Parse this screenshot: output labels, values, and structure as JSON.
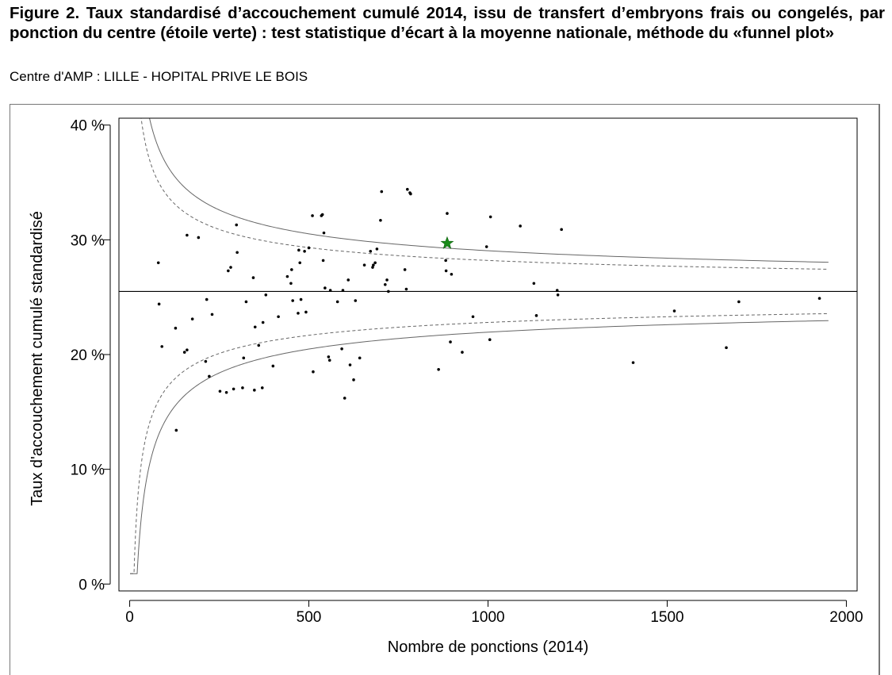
{
  "figure": {
    "title": "Figure 2. Taux standardisé d’accouchement cumulé 2014, issu de transfert d’embryons frais ou congelés, par ponction du centre (étoile verte) : test statistique d’écart à la moyenne nationale, méthode du «funnel plot»",
    "subtitle": "Centre d'AMP : LILLE - HOPITAL PRIVE LE BOIS"
  },
  "chart_data": {
    "type": "scatter",
    "xlabel": "Nombre de ponctions (2014)",
    "ylabel": "Taux d'accouchement cumulé standardisé",
    "xlim": [
      -30,
      2030
    ],
    "ylim": [
      -0.6,
      40.6
    ],
    "xticks": [
      0,
      500,
      1000,
      1500,
      2000
    ],
    "xtick_labels": [
      "0",
      "500",
      "1000",
      "1500",
      "2000"
    ],
    "yticks": [
      0,
      10,
      20,
      30,
      40
    ],
    "ytick_labels": [
      "0 %",
      "10 %",
      "20 %",
      "30 %",
      "40 %"
    ],
    "grid": false,
    "legend": "none",
    "national_mean": 25.5,
    "funnel_limits": {
      "x_range": [
        1,
        1950
      ],
      "inner_dashed_z": 1.96,
      "outer_solid_z": 2.576
    },
    "center": {
      "x": 886,
      "y": 29.7,
      "marker": "star",
      "color": "#1a8a1a"
    },
    "points": [
      [
        80,
        28.0
      ],
      [
        82,
        24.4
      ],
      [
        90,
        20.7
      ],
      [
        128,
        22.3
      ],
      [
        130,
        13.4
      ],
      [
        153,
        20.2
      ],
      [
        160,
        30.4
      ],
      [
        160,
        20.4
      ],
      [
        175,
        23.1
      ],
      [
        192,
        30.2
      ],
      [
        212,
        19.4
      ],
      [
        215,
        24.8
      ],
      [
        222,
        18.1
      ],
      [
        230,
        23.5
      ],
      [
        252,
        16.8
      ],
      [
        270,
        16.7
      ],
      [
        275,
        27.3
      ],
      [
        282,
        27.6
      ],
      [
        290,
        17.0
      ],
      [
        298,
        31.3
      ],
      [
        300,
        28.9
      ],
      [
        315,
        17.1
      ],
      [
        318,
        19.7
      ],
      [
        325,
        24.6
      ],
      [
        345,
        26.7
      ],
      [
        348,
        16.9
      ],
      [
        350,
        22.4
      ],
      [
        360,
        20.8
      ],
      [
        370,
        17.1
      ],
      [
        372,
        22.8
      ],
      [
        380,
        25.2
      ],
      [
        400,
        19.0
      ],
      [
        415,
        23.3
      ],
      [
        440,
        26.8
      ],
      [
        450,
        26.2
      ],
      [
        452,
        27.4
      ],
      [
        455,
        24.7
      ],
      [
        470,
        23.6
      ],
      [
        472,
        29.1
      ],
      [
        475,
        28.0
      ],
      [
        478,
        24.8
      ],
      [
        488,
        29.0
      ],
      [
        492,
        23.7
      ],
      [
        500,
        29.3
      ],
      [
        510,
        32.1
      ],
      [
        512,
        18.5
      ],
      [
        535,
        32.1
      ],
      [
        538,
        32.2
      ],
      [
        540,
        28.2
      ],
      [
        542,
        30.6
      ],
      [
        545,
        25.8
      ],
      [
        555,
        19.8
      ],
      [
        558,
        19.5
      ],
      [
        560,
        25.6
      ],
      [
        580,
        24.6
      ],
      [
        592,
        20.5
      ],
      [
        595,
        25.6
      ],
      [
        600,
        16.2
      ],
      [
        610,
        26.5
      ],
      [
        615,
        19.1
      ],
      [
        625,
        17.8
      ],
      [
        630,
        24.7
      ],
      [
        642,
        19.7
      ],
      [
        655,
        27.8
      ],
      [
        672,
        29.0
      ],
      [
        678,
        27.6
      ],
      [
        680,
        27.8
      ],
      [
        685,
        28.0
      ],
      [
        690,
        29.2
      ],
      [
        700,
        31.7
      ],
      [
        703,
        34.2
      ],
      [
        713,
        26.1
      ],
      [
        718,
        26.5
      ],
      [
        722,
        25.5
      ],
      [
        768,
        27.4
      ],
      [
        772,
        25.7
      ],
      [
        775,
        34.4
      ],
      [
        782,
        34.1
      ],
      [
        784,
        34.0
      ],
      [
        862,
        18.7
      ],
      [
        882,
        28.2
      ],
      [
        883,
        27.3
      ],
      [
        886,
        32.3
      ],
      [
        895,
        21.1
      ],
      [
        898,
        27.0
      ],
      [
        928,
        20.2
      ],
      [
        958,
        23.3
      ],
      [
        996,
        29.4
      ],
      [
        1005,
        21.3
      ],
      [
        1007,
        32.0
      ],
      [
        1090,
        31.2
      ],
      [
        1128,
        26.2
      ],
      [
        1135,
        23.4
      ],
      [
        1193,
        25.6
      ],
      [
        1195,
        25.2
      ],
      [
        1205,
        30.9
      ],
      [
        1405,
        19.3
      ],
      [
        1520,
        23.8
      ],
      [
        1665,
        20.6
      ],
      [
        1700,
        24.6
      ],
      [
        1925,
        24.9
      ]
    ]
  }
}
